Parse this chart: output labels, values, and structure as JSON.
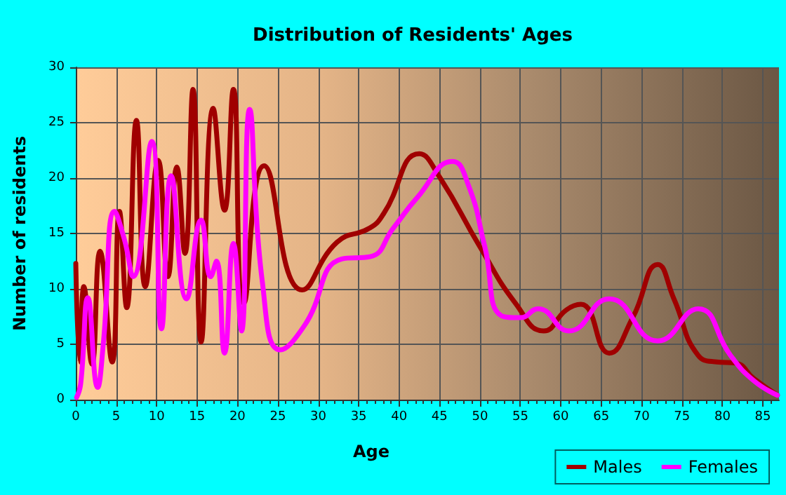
{
  "chart_data": {
    "type": "line",
    "title": "Distribution of Residents' Ages",
    "xlabel": "Age",
    "ylabel": "Number of residents",
    "xlim": [
      0,
      87
    ],
    "xticks": [
      0,
      5,
      10,
      15,
      20,
      25,
      30,
      35,
      40,
      45,
      50,
      55,
      60,
      65,
      70,
      75,
      80,
      85
    ],
    "ylim": [
      0,
      30
    ],
    "yticks": [
      0,
      5,
      10,
      15,
      20,
      25,
      30
    ],
    "grid": true,
    "legend": "bottom right",
    "marker": "none",
    "line_style": "solid",
    "series": [
      {
        "name": "Males",
        "color": "#a00000",
        "x": [
          0,
          0.5,
          1,
          2,
          3,
          4.5,
          5.4,
          6.3,
          7.5,
          8.6,
          10.2,
          11.4,
          12.5,
          13.5,
          14.5,
          15.5,
          17,
          18.4,
          19.5,
          20.8,
          23.3,
          28,
          32.3,
          36.4,
          38.1,
          42.5,
          45,
          50,
          54.4,
          57.9,
          60.7,
          62.5,
          66,
          68.9,
          72,
          74,
          77,
          79.3,
          81.6,
          83.9,
          86.8
        ],
        "values": [
          12.3,
          3.4,
          10.2,
          3.2,
          13.4,
          3.4,
          17,
          8.3,
          25.2,
          10.2,
          21.6,
          11.1,
          21,
          13.2,
          28,
          5.2,
          26.3,
          17.1,
          28,
          8.7,
          21.1,
          9.9,
          14.2,
          15.5,
          16.8,
          22.2,
          20.1,
          13.8,
          8.7,
          6.2,
          8.1,
          8.6,
          4.2,
          7.4,
          12.2,
          9.1,
          4,
          3.4,
          3.3,
          1.9,
          0.4
        ]
      },
      {
        "name": "Females",
        "color": "#ff00ff",
        "x": [
          0.1,
          0.6,
          1.5,
          2.7,
          3.4,
          4.8,
          6,
          7.1,
          9.4,
          10.6,
          11.8,
          13.7,
          15.5,
          16.7,
          17.4,
          18.4,
          19.5,
          20.5,
          21.5,
          23.1,
          25.3,
          28.3,
          32.9,
          36.4,
          39.3,
          42.2,
          46.6,
          48.6,
          50.6,
          52.6,
          55,
          57.2,
          61,
          66,
          72,
          77,
          81,
          83.9,
          86.8
        ],
        "values": [
          0.2,
          1.4,
          9.2,
          1.1,
          5,
          17,
          14.5,
          11.1,
          23.3,
          6.4,
          20.2,
          9.1,
          16.2,
          11.1,
          12.5,
          4.2,
          14.1,
          6.2,
          26.2,
          10.5,
          4.5,
          6.7,
          12.7,
          12.9,
          15.5,
          18.2,
          21.5,
          19.3,
          13.8,
          7.6,
          7.4,
          8.2,
          6.2,
          9.1,
          5.3,
          8.2,
          4,
          1.7,
          0.4
        ]
      }
    ]
  }
}
